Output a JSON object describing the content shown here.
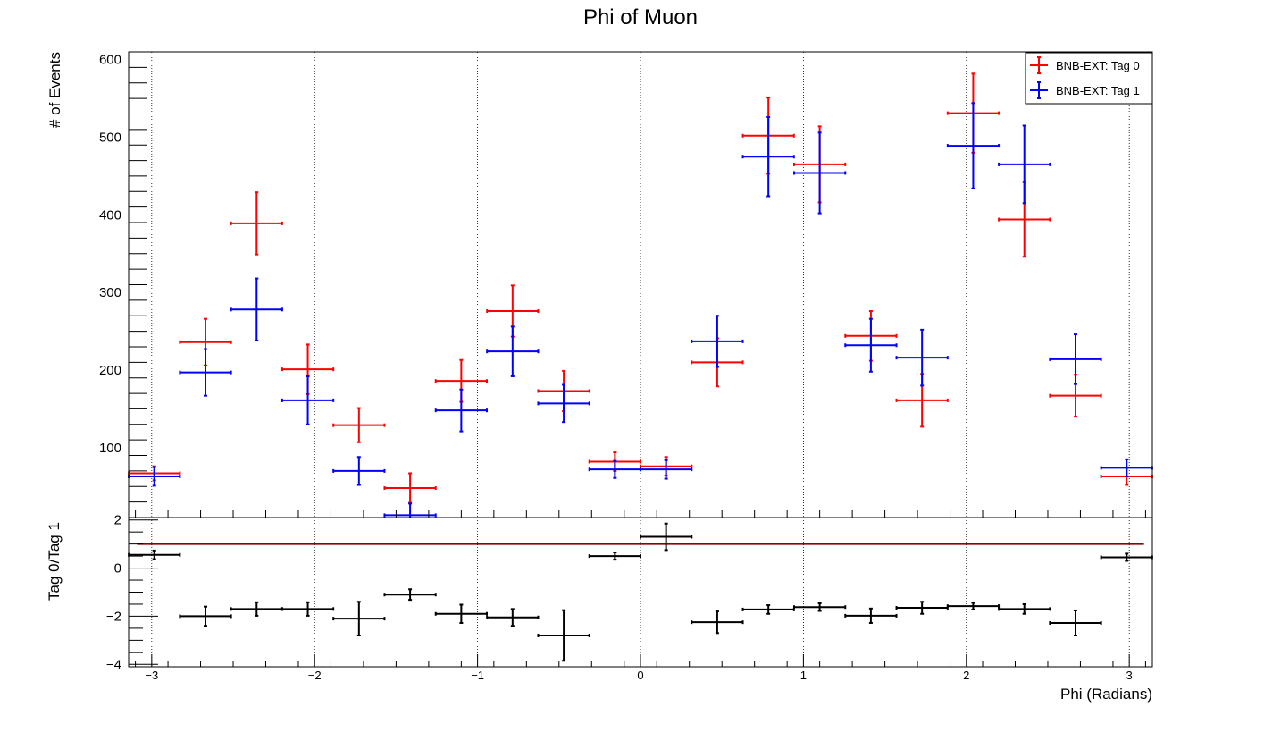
{
  "chart_data": [
    {
      "type": "scatter",
      "panel": "main",
      "title": "Phi of Muon",
      "xlabel": "",
      "ylabel": "# of Events",
      "xlim": [
        -3.1416,
        3.1416
      ],
      "ylim": [
        10,
        610
      ],
      "grid": "vertical dotted at integer x",
      "legend_placement": "top-right",
      "x_centers": [
        -2.984,
        -2.67,
        -2.356,
        -2.042,
        -1.728,
        -1.414,
        -1.1,
        -0.785,
        -0.471,
        -0.157,
        0.157,
        0.471,
        0.785,
        1.1,
        1.414,
        1.728,
        2.042,
        2.356,
        2.67,
        2.984
      ],
      "x_halfwidth": 0.157,
      "series": [
        {
          "name": "BNB-EXT: Tag 0",
          "color": "#ff0000",
          "values": [
            67,
            236,
            389,
            201,
            129,
            48,
            186,
            276,
            173,
            82,
            76,
            210,
            502,
            465,
            244,
            161,
            531,
            394,
            167,
            63
          ],
          "errors": [
            9,
            30,
            40,
            32,
            22,
            19,
            27,
            33,
            26,
            12,
            12,
            31,
            49,
            49,
            32,
            34,
            51,
            48,
            27,
            11
          ]
        },
        {
          "name": "BNB-EXT: Tag 1",
          "color": "#0000ff",
          "values": [
            63,
            197,
            278,
            161,
            70,
            13,
            148,
            224,
            157,
            72,
            72,
            237,
            475,
            454,
            232,
            216,
            489,
            465,
            214,
            74
          ],
          "errors": [
            12,
            30,
            40,
            31,
            18,
            15,
            27,
            32,
            24,
            11,
            12,
            33,
            51,
            52,
            34,
            36,
            55,
            50,
            32,
            11
          ]
        }
      ]
    },
    {
      "type": "scatter",
      "panel": "ratio",
      "xlabel": "Phi (Radians)",
      "ylabel": "Tag 0/Tag 1",
      "xlim": [
        -3.1416,
        3.1416
      ],
      "ylim": [
        -4.1,
        2.1
      ],
      "reference_line": 1,
      "reference_color": "#8b0000",
      "x_centers": [
        -2.984,
        -2.67,
        -2.356,
        -2.042,
        -1.728,
        -1.414,
        -1.1,
        -0.785,
        -0.471,
        -0.157,
        0.157,
        0.471,
        0.785,
        1.1,
        1.414,
        1.728,
        2.042,
        2.356,
        2.67,
        2.984
      ],
      "x_halfwidth": 0.157,
      "series": [
        {
          "name": "",
          "color": "#000000",
          "values": [
            0.55,
            -2.0,
            -1.7,
            -1.7,
            -2.1,
            -1.1,
            -1.9,
            -2.05,
            -2.8,
            0.5,
            1.3,
            -2.25,
            -1.72,
            -1.62,
            -1.98,
            -1.65,
            -1.58,
            -1.7,
            -2.28,
            0.45
          ],
          "errors": [
            0.18,
            0.4,
            0.28,
            0.28,
            0.7,
            0.22,
            0.38,
            0.35,
            1.05,
            0.15,
            0.55,
            0.45,
            0.18,
            0.16,
            0.3,
            0.25,
            0.14,
            0.2,
            0.52,
            0.15
          ]
        }
      ]
    }
  ],
  "main_ticks": {
    "y_labels": [
      "100",
      "200",
      "300",
      "400",
      "500",
      "600"
    ]
  },
  "ratio_ticks": {
    "y_labels": [
      "−4",
      "−2",
      "0",
      "2"
    ],
    "x_labels": [
      "−3",
      "−2",
      "−1",
      "0",
      "1",
      "2",
      "3"
    ]
  }
}
